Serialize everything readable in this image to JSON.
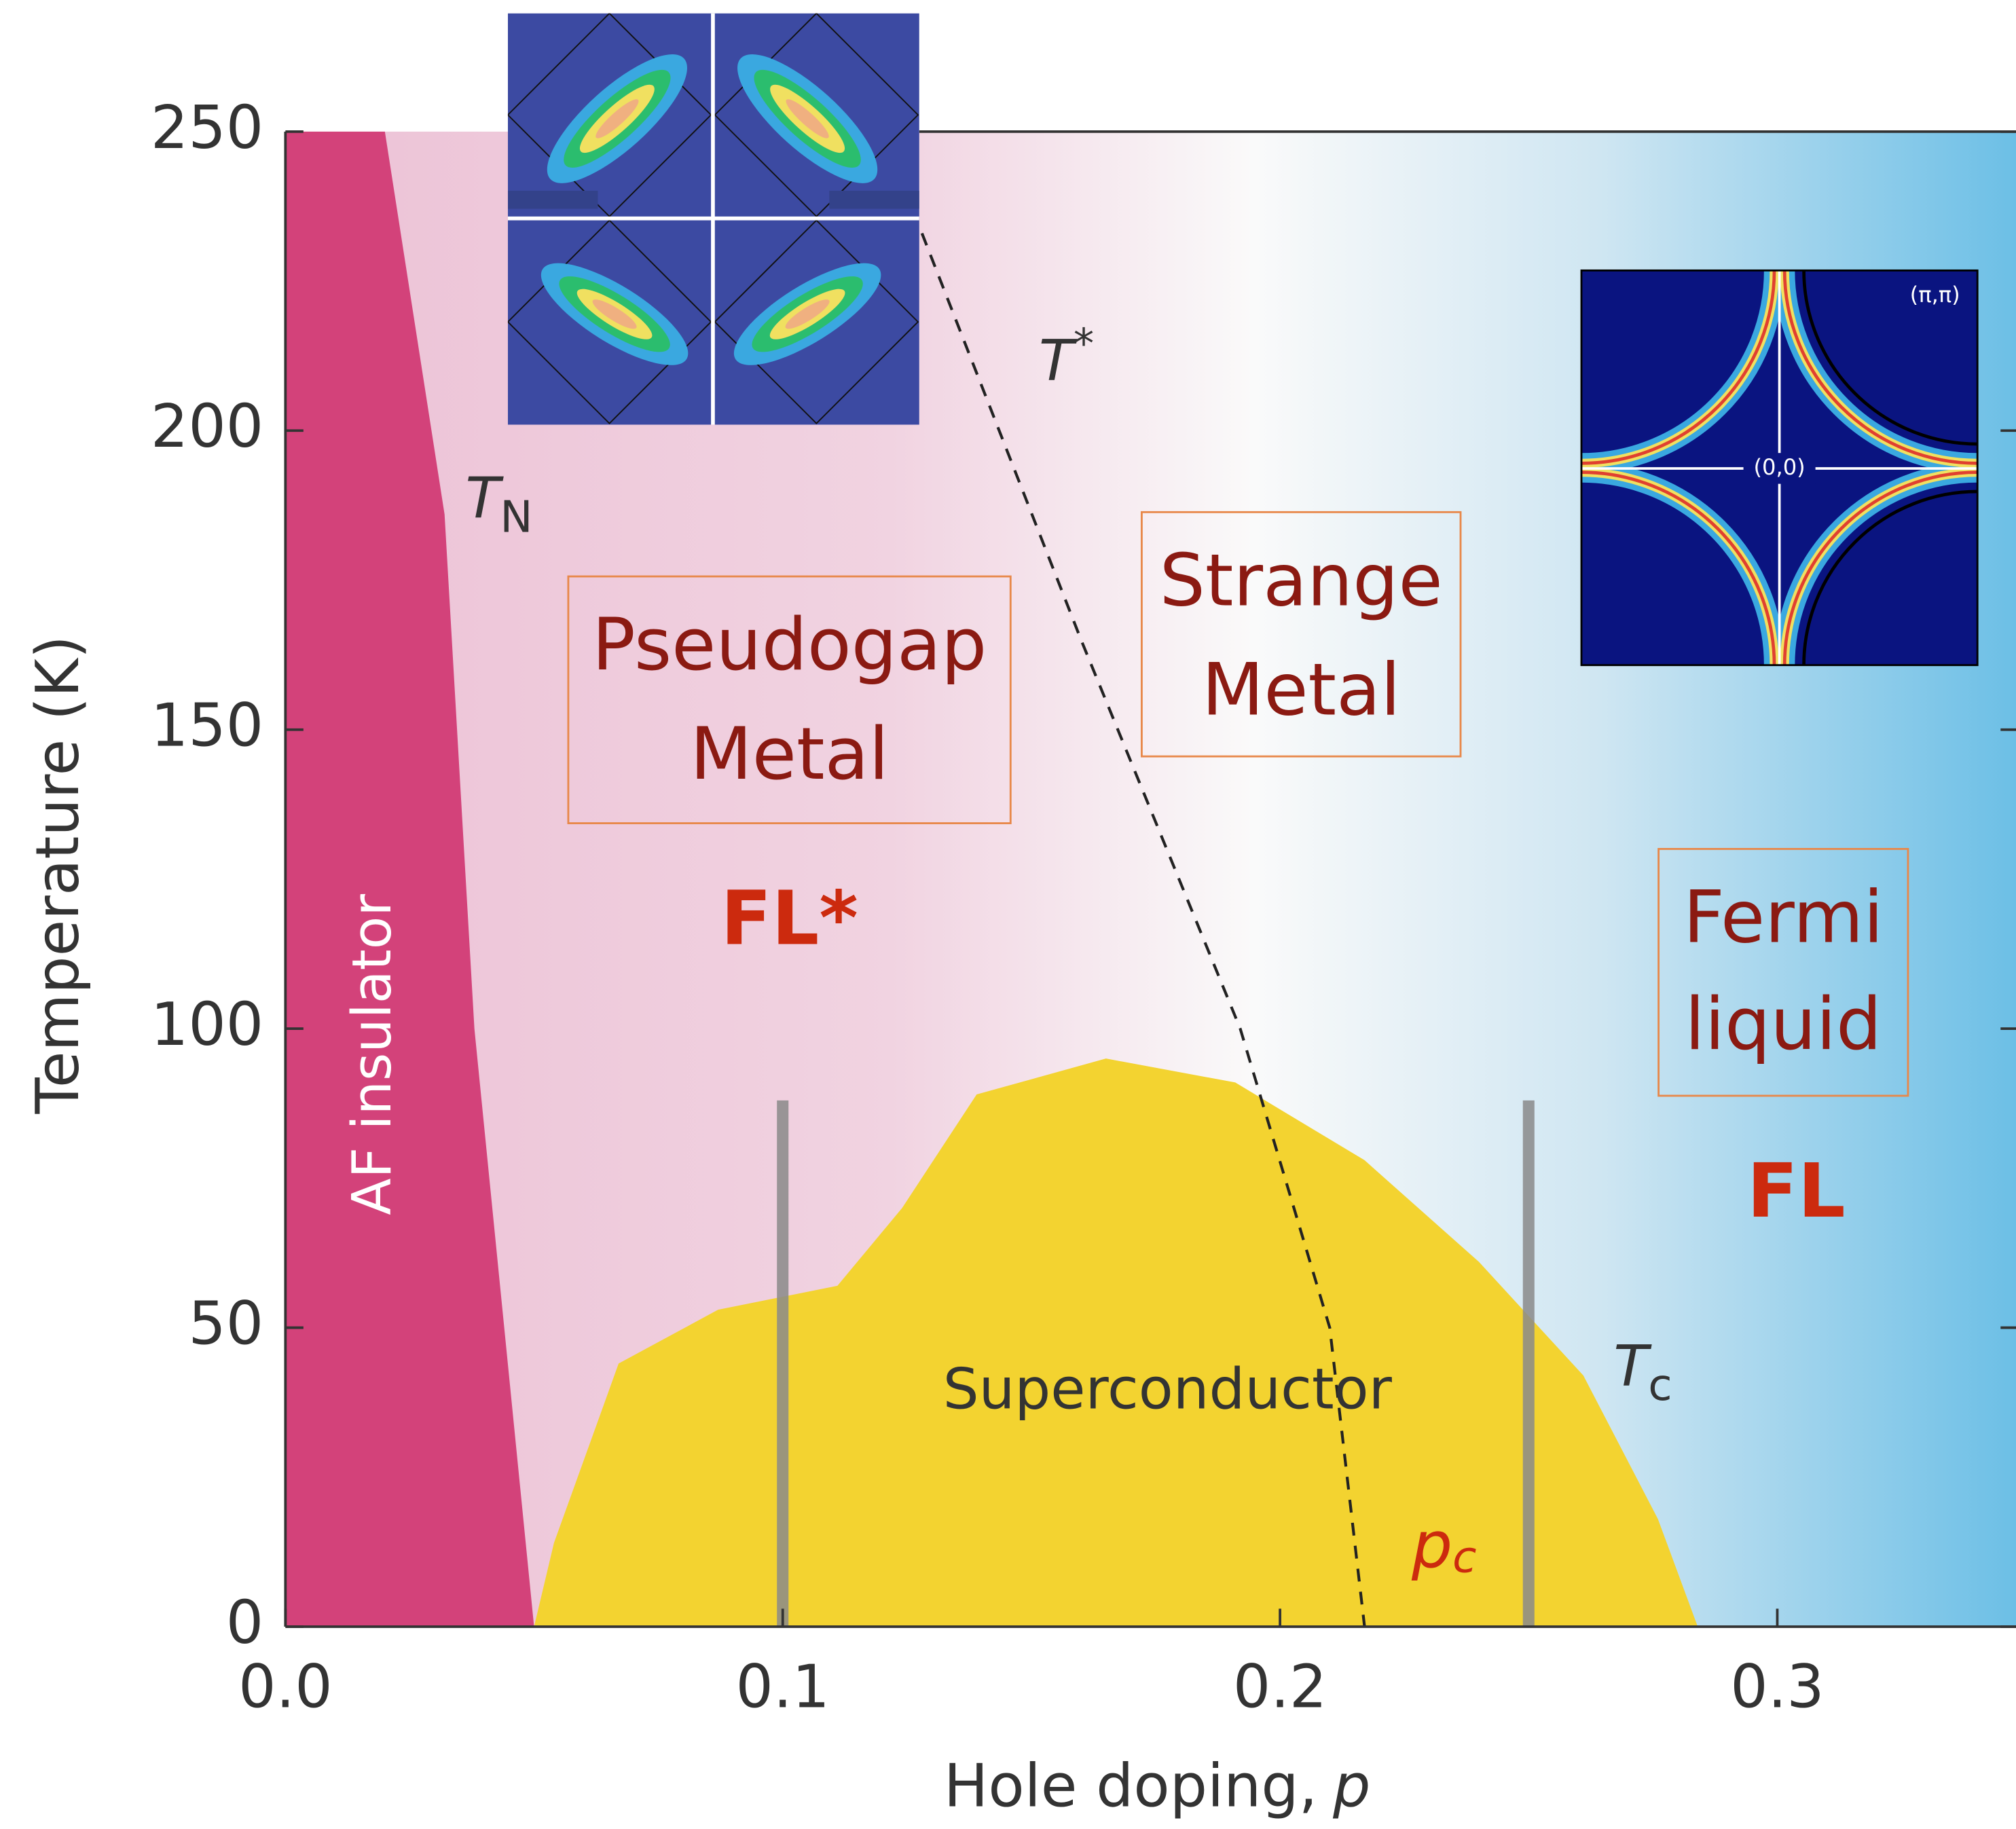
{
  "chart_data": {
    "type": "phase-diagram",
    "ylabel": "Temperature (K)",
    "xlabel": "Hole doping,",
    "xlabel_var": "p",
    "xlim": [
      0,
      0.348
    ],
    "ylim": [
      0,
      250
    ],
    "xticks": [
      {
        "value": 0,
        "label": "0.0"
      },
      0.1,
      0.2,
      0.3
    ],
    "yticks": [
      0,
      50,
      100,
      150,
      200,
      250
    ],
    "af_color": "#d3427a",
    "sc_color": "#f3d330",
    "tn_line": {
      "x": [
        0.02,
        0.032,
        0.038,
        0.05
      ],
      "y": [
        250,
        186,
        100,
        0
      ]
    },
    "tc_dome": {
      "x": [
        0.05,
        0.054,
        0.067,
        0.087,
        0.111,
        0.124,
        0.139,
        0.165,
        0.191,
        0.217,
        0.24,
        0.261,
        0.276,
        0.284
      ],
      "y": [
        0,
        14,
        44,
        53,
        57,
        70,
        89,
        95,
        91,
        78,
        61,
        42,
        18,
        0
      ]
    },
    "tstar_line": {
      "x": [
        0.128,
        0.16,
        0.192,
        0.21,
        0.217
      ],
      "y": [
        233,
        165,
        100,
        50,
        0
      ]
    },
    "guide_lines": {
      "x": [
        0.1,
        0.25
      ],
      "y": [
        0,
        88
      ]
    },
    "regions": {
      "af": "AF insulator",
      "sc": "Superconductor",
      "pseudogap": [
        "Pseudogap",
        "Metal"
      ],
      "strange": [
        "Strange",
        "Metal"
      ],
      "fermi": [
        "Fermi",
        "liquid"
      ],
      "fl_star": "FL*",
      "fl": "FL"
    },
    "symbols": {
      "tn": {
        "base": "T",
        "sub": "N"
      },
      "tstar": {
        "base": "T",
        "sup": "*"
      },
      "tc": {
        "base": "T",
        "sub": "c"
      },
      "pc": {
        "base": "p",
        "sub": "c"
      }
    },
    "insets": {
      "corner": "(π,π)",
      "center": "(0,0)"
    }
  }
}
